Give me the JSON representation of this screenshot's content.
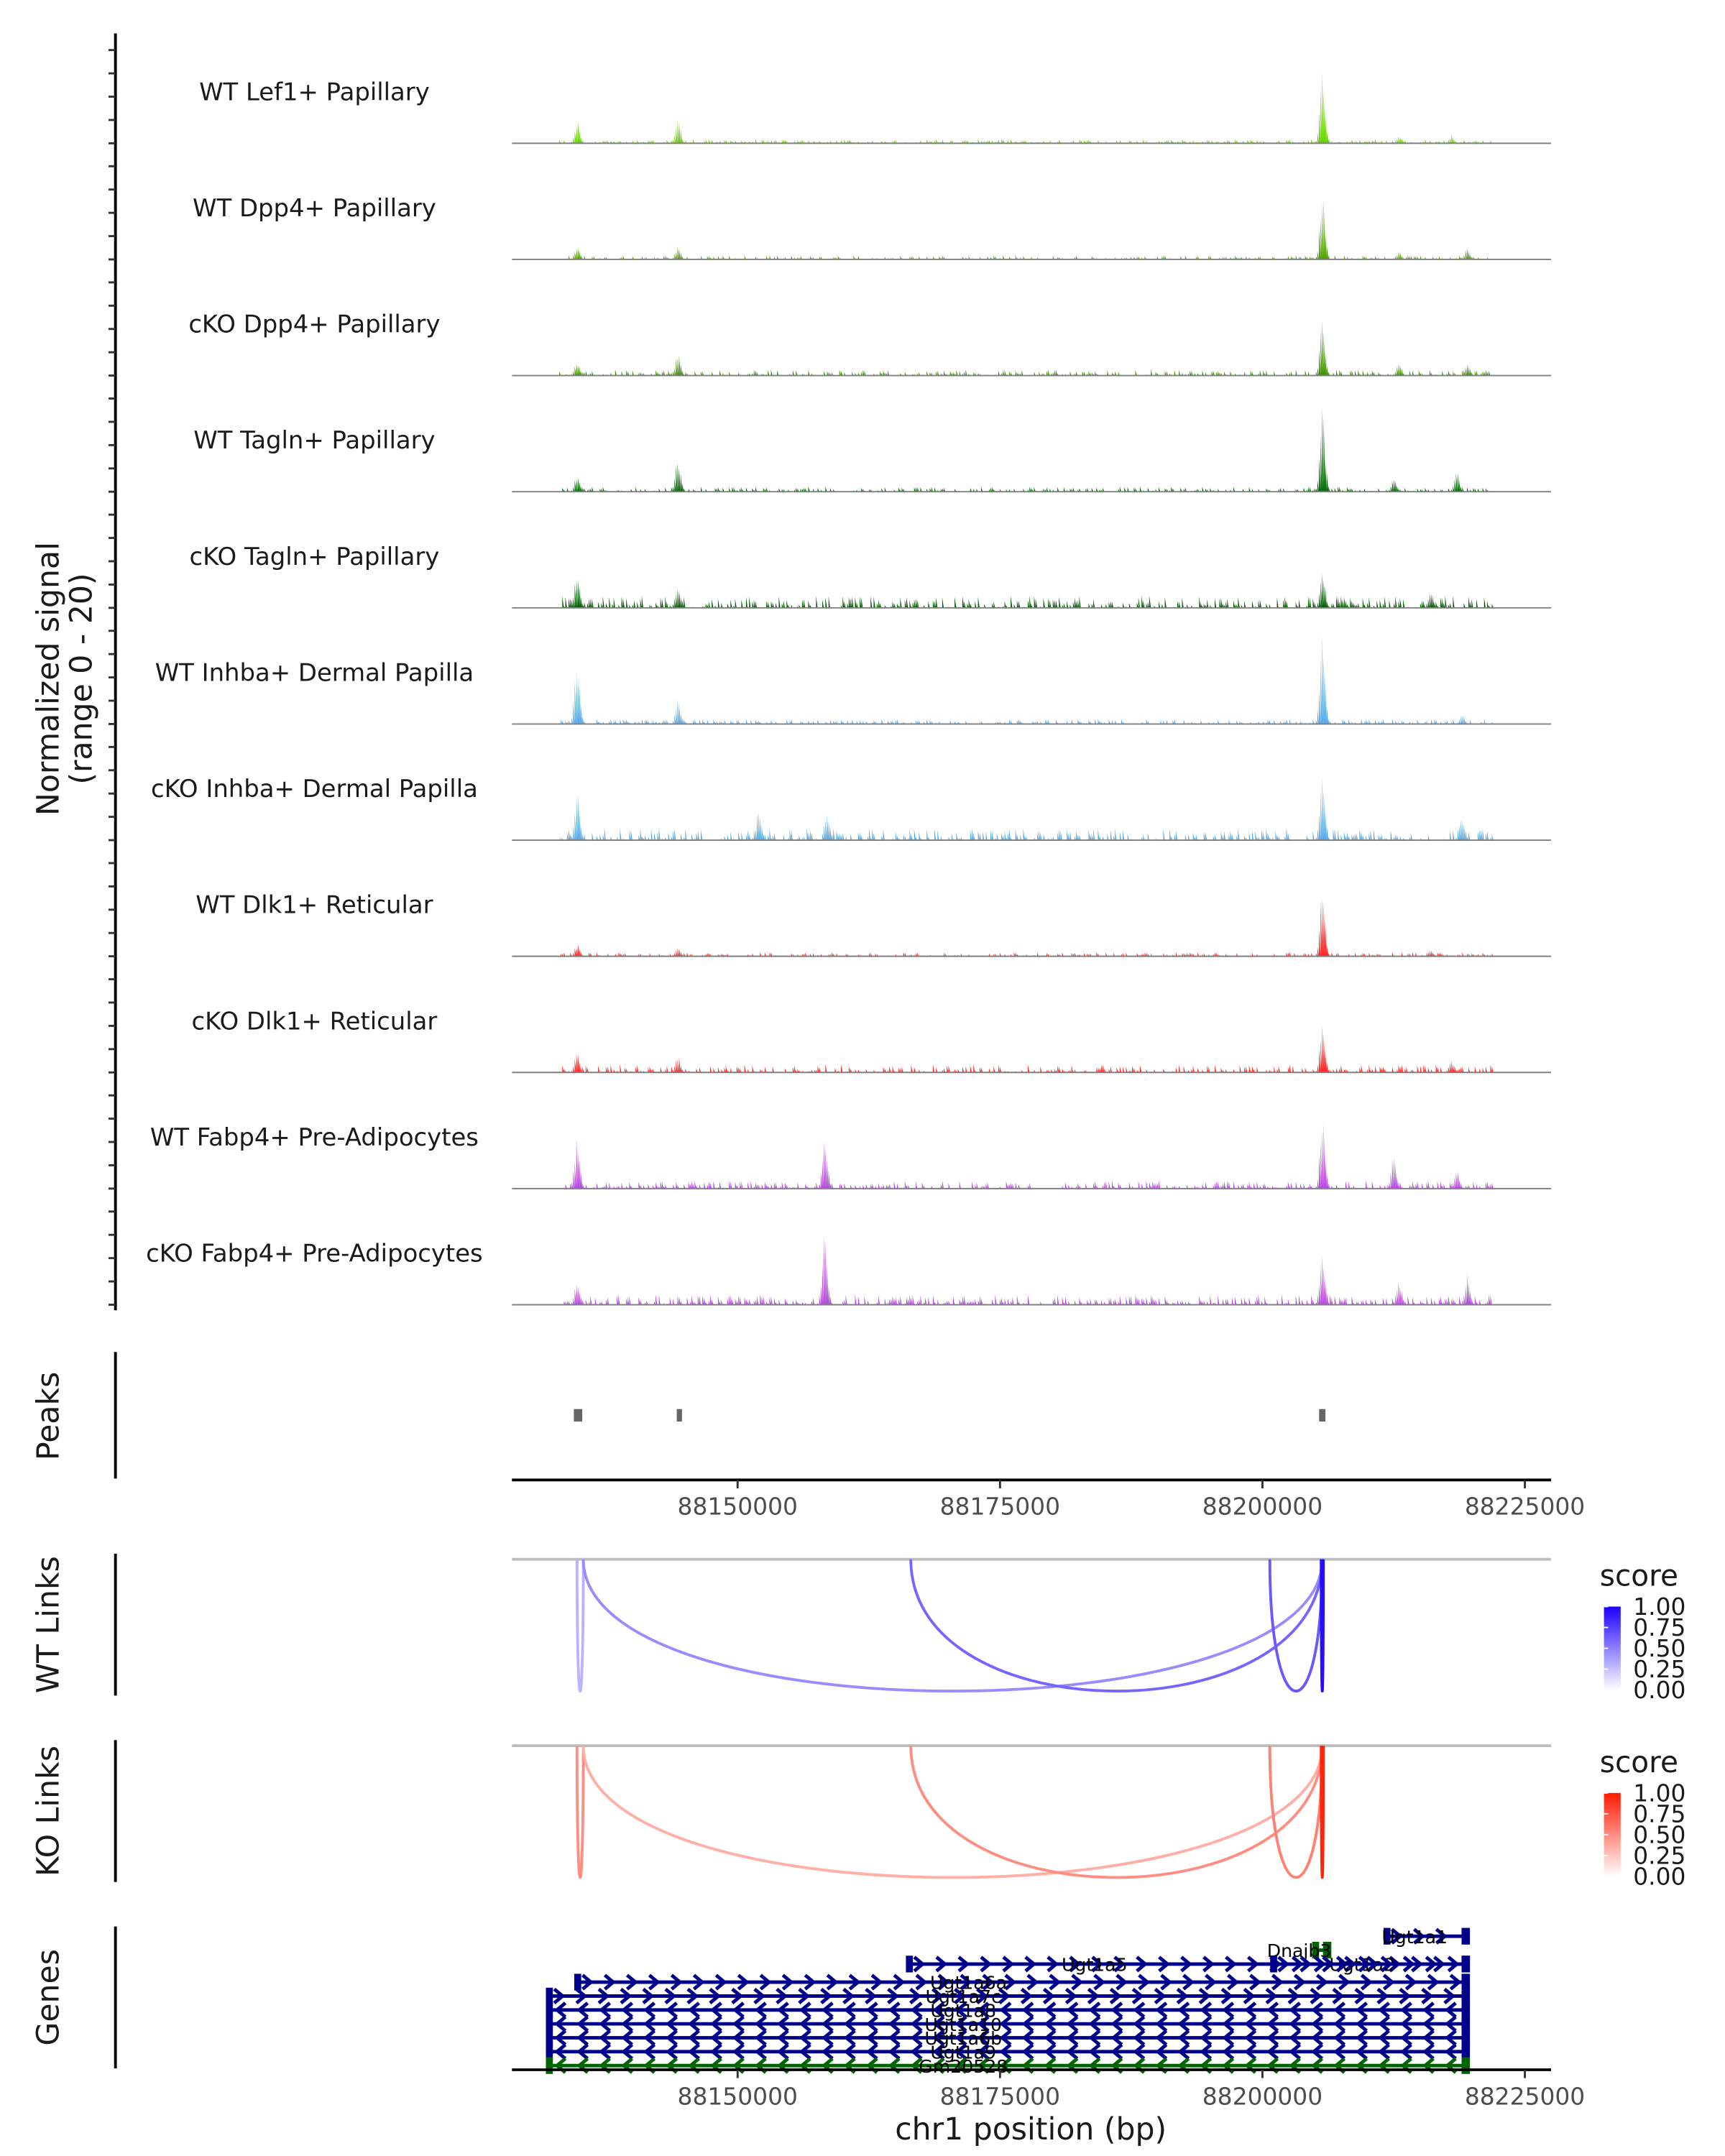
{
  "chart_data": {
    "type": "area",
    "title": "",
    "xlabel": "chr1 position (bp)",
    "ylabel": "Normalized signal\n(range 0 - 20)",
    "ylabel_lines": [
      "Normalized signal",
      "(range 0 - 20)"
    ],
    "xlim": [
      88128500,
      88227500
    ],
    "ylim": [
      0,
      20
    ],
    "x_ticks": [
      88150000,
      88175000,
      88200000,
      88225000
    ],
    "x_tick_labels": [
      "88150000",
      "88175000",
      "88200000",
      "88225000"
    ],
    "coverage_tracks": [
      {
        "name": "WT Lef1+ Papillary",
        "color": "#66cc00",
        "peaks": [
          [
            88134700,
            3.5
          ],
          [
            88144300,
            3.5
          ],
          [
            88205700,
            11
          ],
          [
            88213000,
            1.2
          ],
          [
            88218000,
            1.2
          ]
        ],
        "noise": 0.4
      },
      {
        "name": "WT Dpp4+ Papillary",
        "color": "#4f9a00",
        "peaks": [
          [
            88134700,
            2
          ],
          [
            88144300,
            2
          ],
          [
            88205700,
            10
          ],
          [
            88213000,
            1.2
          ],
          [
            88219500,
            1.8
          ]
        ],
        "noise": 0.4
      },
      {
        "name": "cKO Dpp4+ Papillary",
        "color": "#3f8a00",
        "peaks": [
          [
            88134700,
            2.2
          ],
          [
            88144300,
            3.3
          ],
          [
            88205700,
            9
          ],
          [
            88213000,
            1.8
          ],
          [
            88219500,
            2
          ]
        ],
        "noise": 0.6
      },
      {
        "name": "WT Tagln+ Papillary",
        "color": "#006400",
        "peaks": [
          [
            88134700,
            2.5
          ],
          [
            88144300,
            5
          ],
          [
            88205700,
            13
          ],
          [
            88212500,
            2.2
          ],
          [
            88218500,
            3
          ]
        ],
        "noise": 0.5
      },
      {
        "name": "cKO Tagln+ Papillary",
        "color": "#005800",
        "peaks": [
          [
            88134700,
            6
          ],
          [
            88144300,
            3.5
          ],
          [
            88205700,
            6
          ],
          [
            88216000,
            2.5
          ]
        ],
        "noise": 1.2
      },
      {
        "name": "WT Inhba+ Dermal Papilla",
        "color": "#5aa9e6",
        "peaks": [
          [
            88134700,
            10
          ],
          [
            88144300,
            4
          ],
          [
            88205700,
            15
          ],
          [
            88219000,
            1.5
          ]
        ],
        "noise": 0.5
      },
      {
        "name": "cKO Inhba+ Dermal Papilla",
        "color": "#5aa9e6",
        "peaks": [
          [
            88134700,
            8
          ],
          [
            88152000,
            5
          ],
          [
            88158500,
            5
          ],
          [
            88205700,
            10
          ],
          [
            88219000,
            4
          ]
        ],
        "noise": 1.2
      },
      {
        "name": "WT Dlk1+ Reticular",
        "color": "#ff2424",
        "peaks": [
          [
            88134700,
            2
          ],
          [
            88144300,
            1.5
          ],
          [
            88205700,
            10
          ],
          [
            88216000,
            1
          ]
        ],
        "noise": 0.4
      },
      {
        "name": "cKO Dlk1+ Reticular",
        "color": "#ff2424",
        "peaks": [
          [
            88134700,
            3
          ],
          [
            88144300,
            2.5
          ],
          [
            88205700,
            7.5
          ],
          [
            88218000,
            2
          ]
        ],
        "noise": 0.8
      },
      {
        "name": "WT Fabp4+ Pre-Adipocytes",
        "color": "#b347e0",
        "peaks": [
          [
            88134700,
            8
          ],
          [
            88158300,
            8
          ],
          [
            88205700,
            11
          ],
          [
            88212500,
            5
          ],
          [
            88218500,
            3
          ]
        ],
        "noise": 0.8
      },
      {
        "name": "cKO Fabp4+ Pre-Adipocytes",
        "color": "#b347e0",
        "peaks": [
          [
            88134700,
            4
          ],
          [
            88158300,
            11
          ],
          [
            88205700,
            9
          ],
          [
            88213000,
            3.5
          ],
          [
            88219500,
            4.5
          ]
        ],
        "noise": 1.0
      }
    ],
    "peaks_track": {
      "label": "Peaks",
      "color": "#666666",
      "regions": [
        [
          88134400,
          88135200
        ],
        [
          88144200,
          88144700
        ],
        [
          88205400,
          88206000
        ]
      ]
    },
    "links_tracks": [
      {
        "label": "WT Links",
        "legend_title": "score",
        "low_color": "#ffffff",
        "high_color": "#1a00ff",
        "legend_ticks": [
          "1.00",
          "0.75",
          "0.50",
          "0.25",
          "0.00"
        ],
        "links": [
          {
            "start": 88134700,
            "end": 88135300,
            "score": 0.3
          },
          {
            "start": 88135300,
            "end": 88205700,
            "score": 0.45
          },
          {
            "start": 88166500,
            "end": 88205700,
            "score": 0.6
          },
          {
            "start": 88200700,
            "end": 88205700,
            "score": 0.65
          },
          {
            "start": 88205600,
            "end": 88205800,
            "score": 0.95
          }
        ]
      },
      {
        "label": "KO Links",
        "legend_title": "score",
        "low_color": "#ffffff",
        "high_color": "#ff1a00",
        "legend_ticks": [
          "1.00",
          "0.75",
          "0.50",
          "0.25",
          "0.00"
        ],
        "links": [
          {
            "start": 88134700,
            "end": 88135300,
            "score": 0.5
          },
          {
            "start": 88135300,
            "end": 88205700,
            "score": 0.35
          },
          {
            "start": 88166500,
            "end": 88205700,
            "score": 0.5
          },
          {
            "start": 88200700,
            "end": 88205700,
            "score": 0.55
          },
          {
            "start": 88205600,
            "end": 88205800,
            "score": 0.95
          }
        ]
      }
    ],
    "genes_track": {
      "label": "Genes",
      "plus_color": "#00008b",
      "minus_color": "#006400",
      "genes": [
        {
          "name": "Ugt1a1",
          "start": 88211800,
          "end": 88219500,
          "strand": "+",
          "row": 0,
          "label_x": 88214500
        },
        {
          "name": "Dnajb3",
          "start": 88205000,
          "end": 88206300,
          "strand": "-",
          "row": 1,
          "color": "green",
          "label_x": 88203500
        },
        {
          "name": "Ugt1a2",
          "start": 88201000,
          "end": 88219500,
          "strand": "+",
          "row": 2,
          "label_x": 88209500
        },
        {
          "name": "Ugt1a5",
          "start": 88166300,
          "end": 88219500,
          "strand": "+",
          "row": 2,
          "label_x": 88184000
        },
        {
          "name": "Ugt1a6a",
          "start": 88134700,
          "end": 88219500,
          "strand": "+",
          "row": 3,
          "label_x": 88172000
        },
        {
          "name": "Ugt1a7c",
          "start": 88132000,
          "end": 88219500,
          "strand": "+",
          "row": 4,
          "label_x": 88171500
        },
        {
          "name": "Ugt1a8",
          "start": 88132000,
          "end": 88219500,
          "strand": "-",
          "row": 5,
          "label_x": 88171500
        },
        {
          "name": "Ugt1a10",
          "start": 88132000,
          "end": 88219500,
          "strand": "-",
          "row": 6,
          "label_x": 88171500
        },
        {
          "name": "Ugt1a6b",
          "start": 88132000,
          "end": 88219500,
          "strand": "-",
          "row": 7,
          "label_x": 88171500
        },
        {
          "name": "Ugt1a9",
          "start": 88132000,
          "end": 88219500,
          "strand": "-",
          "row": 8,
          "label_x": 88171500
        },
        {
          "name": "Gm20528",
          "start": 88132000,
          "end": 88219500,
          "strand": "-",
          "row": 9,
          "color": "green",
          "label_x": 88171500
        }
      ]
    }
  }
}
